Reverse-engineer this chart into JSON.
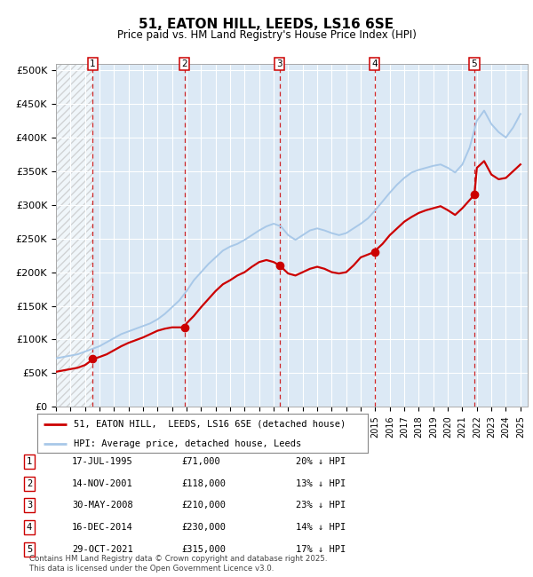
{
  "title": "51, EATON HILL, LEEDS, LS16 6SE",
  "subtitle": "Price paid vs. HM Land Registry's House Price Index (HPI)",
  "background_color": "#ffffff",
  "plot_bg_color": "#dce9f5",
  "grid_color": "#ffffff",
  "ylim": [
    0,
    500000
  ],
  "yticks": [
    0,
    50000,
    100000,
    150000,
    200000,
    250000,
    300000,
    350000,
    400000,
    450000,
    500000
  ],
  "ytick_labels": [
    "£0",
    "£50K",
    "£100K",
    "£150K",
    "£200K",
    "£250K",
    "£300K",
    "£350K",
    "£400K",
    "£450K",
    "£500K"
  ],
  "sale_dates": [
    "1995-07-17",
    "2001-11-14",
    "2008-05-30",
    "2014-12-16",
    "2021-10-29"
  ],
  "sale_prices": [
    71000,
    118000,
    210000,
    230000,
    315000
  ],
  "sale_labels": [
    "1",
    "2",
    "3",
    "4",
    "5"
  ],
  "sale_info": [
    [
      "1",
      "17-JUL-1995",
      "£71,000",
      "20% ↓ HPI"
    ],
    [
      "2",
      "14-NOV-2001",
      "£118,000",
      "13% ↓ HPI"
    ],
    [
      "3",
      "30-MAY-2008",
      "£210,000",
      "23% ↓ HPI"
    ],
    [
      "4",
      "16-DEC-2014",
      "£230,000",
      "14% ↓ HPI"
    ],
    [
      "5",
      "29-OCT-2021",
      "£315,000",
      "17% ↓ HPI"
    ]
  ],
  "hpi_line_color": "#a8c8e8",
  "price_line_color": "#cc0000",
  "dot_color": "#cc0000",
  "vline_color": "#cc0000",
  "footer": "Contains HM Land Registry data © Crown copyright and database right 2025.\nThis data is licensed under the Open Government Licence v3.0.",
  "hpi_data_x": [
    1993.0,
    1993.5,
    1994.0,
    1994.5,
    1995.0,
    1995.5,
    1996.0,
    1996.5,
    1997.0,
    1997.5,
    1998.0,
    1998.5,
    1999.0,
    1999.5,
    2000.0,
    2000.5,
    2001.0,
    2001.5,
    2002.0,
    2002.5,
    2003.0,
    2003.5,
    2004.0,
    2004.5,
    2005.0,
    2005.5,
    2006.0,
    2006.5,
    2007.0,
    2007.5,
    2008.0,
    2008.5,
    2009.0,
    2009.5,
    2010.0,
    2010.5,
    2011.0,
    2011.5,
    2012.0,
    2012.5,
    2013.0,
    2013.5,
    2014.0,
    2014.5,
    2015.0,
    2015.5,
    2016.0,
    2016.5,
    2017.0,
    2017.5,
    2018.0,
    2018.5,
    2019.0,
    2019.5,
    2020.0,
    2020.5,
    2021.0,
    2021.5,
    2022.0,
    2022.5,
    2023.0,
    2023.5,
    2024.0,
    2024.5,
    2025.0
  ],
  "hpi_values": [
    72000,
    74000,
    76000,
    78000,
    82000,
    86000,
    90000,
    96000,
    102000,
    108000,
    112000,
    116000,
    120000,
    124000,
    130000,
    138000,
    148000,
    158000,
    172000,
    188000,
    200000,
    212000,
    222000,
    232000,
    238000,
    242000,
    248000,
    255000,
    262000,
    268000,
    272000,
    268000,
    255000,
    248000,
    255000,
    262000,
    265000,
    262000,
    258000,
    255000,
    258000,
    265000,
    272000,
    280000,
    292000,
    305000,
    318000,
    330000,
    340000,
    348000,
    352000,
    355000,
    358000,
    360000,
    355000,
    348000,
    360000,
    385000,
    425000,
    440000,
    420000,
    408000,
    400000,
    415000,
    435000
  ],
  "price_data_x": [
    1993.0,
    1993.5,
    1994.0,
    1994.5,
    1995.0,
    1995.58,
    1996.0,
    1996.5,
    1997.0,
    1997.5,
    1998.0,
    1998.5,
    1999.0,
    1999.5,
    2000.0,
    2000.5,
    2001.0,
    2001.87,
    2002.0,
    2002.5,
    2003.0,
    2003.5,
    2004.0,
    2004.5,
    2005.0,
    2005.5,
    2006.0,
    2006.5,
    2007.0,
    2007.5,
    2008.0,
    2008.41,
    2009.0,
    2009.5,
    2010.0,
    2010.5,
    2011.0,
    2011.5,
    2012.0,
    2012.5,
    2013.0,
    2013.5,
    2014.0,
    2014.95,
    2015.0,
    2015.5,
    2016.0,
    2016.5,
    2017.0,
    2017.5,
    2018.0,
    2018.5,
    2019.0,
    2019.5,
    2020.0,
    2020.5,
    2021.0,
    2021.83,
    2022.0,
    2022.5,
    2023.0,
    2023.5,
    2024.0,
    2024.5,
    2025.0
  ],
  "price_values": [
    52000,
    54000,
    56000,
    58000,
    62000,
    71000,
    74000,
    78000,
    84000,
    90000,
    95000,
    99000,
    103000,
    108000,
    113000,
    116000,
    118000,
    118000,
    124000,
    135000,
    148000,
    160000,
    172000,
    182000,
    188000,
    195000,
    200000,
    208000,
    215000,
    218000,
    215000,
    210000,
    198000,
    195000,
    200000,
    205000,
    208000,
    205000,
    200000,
    198000,
    200000,
    210000,
    222000,
    230000,
    232000,
    242000,
    255000,
    265000,
    275000,
    282000,
    288000,
    292000,
    295000,
    298000,
    292000,
    285000,
    295000,
    315000,
    355000,
    365000,
    345000,
    338000,
    340000,
    350000,
    360000
  ]
}
